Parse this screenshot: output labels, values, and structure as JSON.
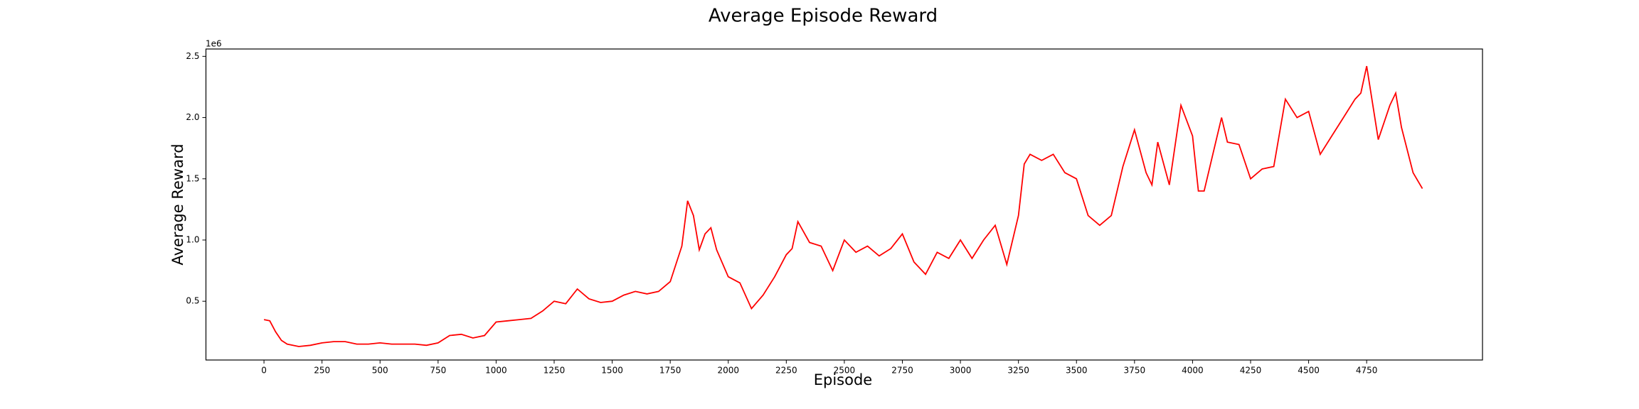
{
  "chart_data": {
    "type": "line",
    "title": "Average Episode Reward",
    "x_label": "Episode",
    "y_label": "Average Reward",
    "y_offset_label": "1e6",
    "series": [
      {
        "name": "Average Reward",
        "color": "#ff0000",
        "x": [
          0,
          25,
          50,
          75,
          100,
          150,
          200,
          250,
          300,
          350,
          400,
          450,
          500,
          550,
          600,
          650,
          700,
          750,
          800,
          850,
          900,
          950,
          1000,
          1050,
          1100,
          1150,
          1200,
          1250,
          1300,
          1350,
          1400,
          1450,
          1500,
          1550,
          1600,
          1650,
          1700,
          1750,
          1800,
          1825,
          1850,
          1875,
          1900,
          1925,
          1950,
          2000,
          2050,
          2100,
          2150,
          2200,
          2250,
          2275,
          2300,
          2350,
          2400,
          2450,
          2500,
          2550,
          2600,
          2650,
          2700,
          2750,
          2800,
          2850,
          2900,
          2950,
          3000,
          3050,
          3100,
          3150,
          3200,
          3250,
          3275,
          3300,
          3350,
          3400,
          3450,
          3500,
          3550,
          3600,
          3650,
          3700,
          3750,
          3800,
          3825,
          3850,
          3900,
          3950,
          4000,
          4025,
          4050,
          4100,
          4125,
          4150,
          4200,
          4250,
          4300,
          4350,
          4400,
          4450,
          4500,
          4550,
          4600,
          4650,
          4700,
          4725,
          4750,
          4800,
          4850,
          4875,
          4900,
          4950,
          4990
        ],
        "values": [
          0.35,
          0.34,
          0.25,
          0.18,
          0.15,
          0.13,
          0.14,
          0.16,
          0.17,
          0.17,
          0.15,
          0.15,
          0.16,
          0.15,
          0.15,
          0.15,
          0.14,
          0.16,
          0.22,
          0.23,
          0.2,
          0.22,
          0.33,
          0.34,
          0.35,
          0.36,
          0.42,
          0.5,
          0.48,
          0.6,
          0.52,
          0.49,
          0.5,
          0.55,
          0.58,
          0.56,
          0.58,
          0.66,
          0.95,
          1.32,
          1.2,
          0.92,
          1.05,
          1.1,
          0.92,
          0.7,
          0.65,
          0.44,
          0.55,
          0.7,
          0.88,
          0.93,
          1.15,
          0.98,
          0.95,
          0.75,
          1.0,
          0.9,
          0.95,
          0.87,
          0.93,
          1.05,
          0.82,
          0.72,
          0.9,
          0.85,
          1.0,
          0.85,
          1.0,
          1.12,
          0.8,
          1.2,
          1.62,
          1.7,
          1.65,
          1.7,
          1.55,
          1.5,
          1.2,
          1.12,
          1.2,
          1.6,
          1.9,
          1.55,
          1.45,
          1.8,
          1.45,
          2.1,
          1.85,
          1.4,
          1.4,
          1.8,
          2.0,
          1.8,
          1.78,
          1.5,
          1.58,
          1.6,
          2.15,
          2.0,
          2.05,
          1.7,
          1.85,
          2.0,
          2.15,
          2.2,
          2.42,
          1.82,
          2.1,
          2.2,
          1.92,
          1.55,
          1.42
        ]
      }
    ],
    "xlim": [
      -250,
      5249
    ],
    "xticks": [
      0,
      250,
      500,
      750,
      1000,
      1250,
      1500,
      1750,
      2000,
      2250,
      2500,
      2750,
      3000,
      3250,
      3500,
      3750,
      4000,
      4250,
      4500,
      4750
    ],
    "ylim": [
      0.02,
      2.56
    ],
    "yticks": [
      0.5,
      {
        "value": 1,
        "label": "1.0"
      },
      1.5,
      {
        "value": 2,
        "label": "2.0"
      },
      2.5
    ],
    "grid": false
  }
}
